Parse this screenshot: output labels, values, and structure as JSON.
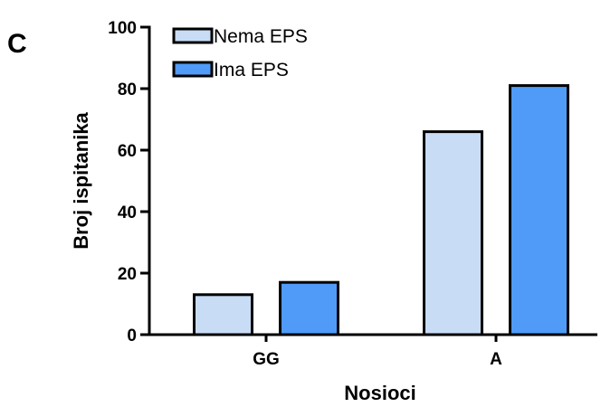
{
  "panel_label": "C",
  "chart_data": {
    "type": "bar",
    "categories": [
      "GG",
      "A"
    ],
    "series": [
      {
        "name": "Nema EPS",
        "values": [
          13,
          66
        ],
        "color": "#c8dcf5"
      },
      {
        "name": "Ima EPS",
        "values": [
          17,
          81
        ],
        "color": "#4f9bf7"
      }
    ],
    "xlabel": "Nosioci",
    "ylabel": "Broj ispitanika",
    "ylim": [
      0,
      100
    ],
    "yticks": [
      0,
      20,
      40,
      60,
      80,
      100
    ],
    "legend": "top-left",
    "grid": false
  }
}
